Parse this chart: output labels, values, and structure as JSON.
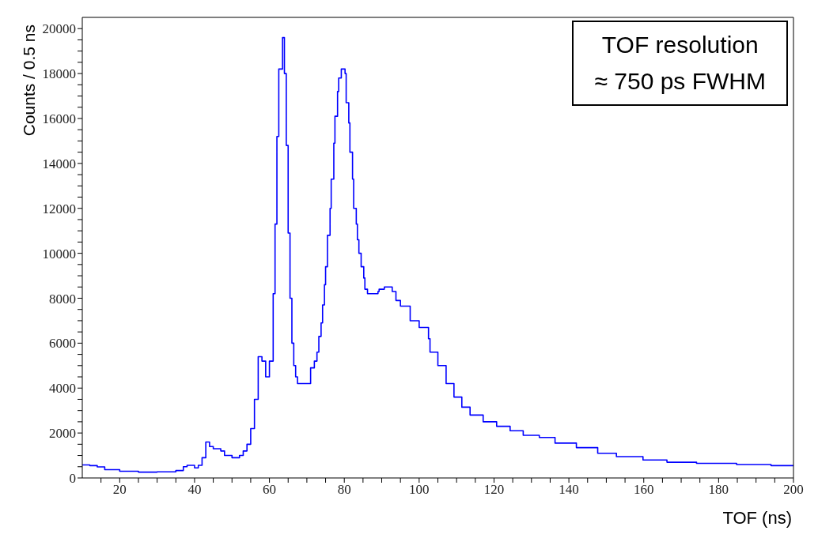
{
  "chart_data": {
    "type": "step",
    "xlabel": "TOF (ns)",
    "ylabel": "Counts / 0.5 ns",
    "x": [
      10,
      12,
      14,
      16,
      20,
      25,
      30,
      35,
      37,
      38,
      40,
      41,
      42,
      43,
      44,
      45,
      47,
      48,
      50,
      52,
      53,
      54,
      55,
      56,
      57,
      58,
      59,
      60,
      61,
      61.5,
      62,
      62.5,
      63.5,
      64,
      64.5,
      65,
      65.5,
      66,
      66.5,
      67,
      67.5,
      71,
      72,
      72.7,
      73.2,
      73.8,
      74.2,
      74.7,
      75,
      75.5,
      76.2,
      76.5,
      77.2,
      77.5,
      78.2,
      78.5,
      79.2,
      80.2,
      80.5,
      81.2,
      81.5,
      82.2,
      82.5,
      83.2,
      83.5,
      83.9,
      84.5,
      85.2,
      85.5,
      86.2,
      89,
      89.3,
      90.7,
      92.8,
      93.8,
      95,
      97.6,
      100,
      102.5,
      102.9,
      105,
      107.2,
      109.3,
      111.4,
      113.6,
      117.1,
      120.7,
      124.3,
      127.8,
      132.1,
      136.3,
      142,
      147.7,
      152.7,
      159.8,
      166.2,
      174.1,
      184.8,
      194,
      200
    ],
    "series": [
      {
        "color": "#0000ff",
        "values": [
          580,
          550,
          490,
          370,
          300,
          260,
          270,
          330,
          500,
          560,
          450,
          560,
          900,
          1600,
          1400,
          1300,
          1200,
          1000,
          900,
          1000,
          1200,
          1500,
          2200,
          3500,
          5400,
          5200,
          4500,
          5200,
          8200,
          11300,
          15200,
          18200,
          19600,
          18000,
          14800,
          10900,
          8000,
          6000,
          5000,
          4500,
          4200,
          4900,
          5200,
          5600,
          6300,
          6900,
          7700,
          8600,
          9400,
          10800,
          12000,
          13300,
          14900,
          16100,
          17200,
          17800,
          18200,
          18000,
          16700,
          15800,
          14500,
          13300,
          12000,
          11300,
          10600,
          10000,
          9400,
          8900,
          8400,
          8200,
          8300,
          8400,
          8500,
          8300,
          7900,
          7650,
          7000,
          6700,
          6200,
          5600,
          5000,
          4200,
          3600,
          3150,
          2800,
          2500,
          2300,
          2100,
          1900,
          1800,
          1550,
          1350,
          1100,
          950,
          800,
          700,
          650,
          600,
          550,
          550
        ]
      }
    ],
    "xlim": [
      10,
      200
    ],
    "xticks": [
      {
        "value": 15,
        "label": null
      },
      20,
      {
        "value": 25,
        "label": null
      },
      {
        "value": 30,
        "label": null
      },
      {
        "value": 35,
        "label": null
      },
      40,
      {
        "value": 45,
        "label": null
      },
      {
        "value": 50,
        "label": null
      },
      {
        "value": 55,
        "label": null
      },
      60,
      {
        "value": 65,
        "label": null
      },
      {
        "value": 70,
        "label": null
      },
      {
        "value": 75,
        "label": null
      },
      80,
      {
        "value": 85,
        "label": null
      },
      {
        "value": 90,
        "label": null
      },
      {
        "value": 95,
        "label": null
      },
      100,
      {
        "value": 105,
        "label": null
      },
      {
        "value": 110,
        "label": null
      },
      {
        "value": 115,
        "label": null
      },
      120,
      {
        "value": 125,
        "label": null
      },
      {
        "value": 130,
        "label": null
      },
      {
        "value": 135,
        "label": null
      },
      140,
      {
        "value": 145,
        "label": null
      },
      {
        "value": 150,
        "label": null
      },
      {
        "value": 155,
        "label": null
      },
      160,
      {
        "value": 165,
        "label": null
      },
      {
        "value": 170,
        "label": null
      },
      {
        "value": 175,
        "label": null
      },
      180,
      {
        "value": 185,
        "label": null
      },
      {
        "value": 190,
        "label": null
      },
      {
        "value": 195,
        "label": null
      },
      200
    ],
    "ylim": [
      0,
      20500
    ],
    "yticks": [
      0,
      {
        "value": 500,
        "label": null
      },
      {
        "value": 1000,
        "label": null
      },
      {
        "value": 1500,
        "label": null
      },
      2000,
      {
        "value": 2500,
        "label": null
      },
      {
        "value": 3000,
        "label": null
      },
      {
        "value": 3500,
        "label": null
      },
      4000,
      {
        "value": 4500,
        "label": null
      },
      {
        "value": 5000,
        "label": null
      },
      {
        "value": 5500,
        "label": null
      },
      6000,
      {
        "value": 6500,
        "label": null
      },
      {
        "value": 7000,
        "label": null
      },
      {
        "value": 7500,
        "label": null
      },
      8000,
      {
        "value": 8500,
        "label": null
      },
      {
        "value": 9000,
        "label": null
      },
      {
        "value": 9500,
        "label": null
      },
      10000,
      {
        "value": 10500,
        "label": null
      },
      {
        "value": 11000,
        "label": null
      },
      {
        "value": 11500,
        "label": null
      },
      12000,
      {
        "value": 12500,
        "label": null
      },
      {
        "value": 13000,
        "label": null
      },
      {
        "value": 13500,
        "label": null
      },
      14000,
      {
        "value": 14500,
        "label": null
      },
      {
        "value": 15000,
        "label": null
      },
      {
        "value": 15500,
        "label": null
      },
      16000,
      {
        "value": 16500,
        "label": null
      },
      {
        "value": 17000,
        "label": null
      },
      {
        "value": 17500,
        "label": null
      },
      18000,
      {
        "value": 18500,
        "label": null
      },
      {
        "value": 19000,
        "label": null
      },
      {
        "value": 19500,
        "label": null
      },
      20000
    ],
    "annotations": [
      "TOF resolution\n≈ 750 ps FWHM"
    ]
  }
}
